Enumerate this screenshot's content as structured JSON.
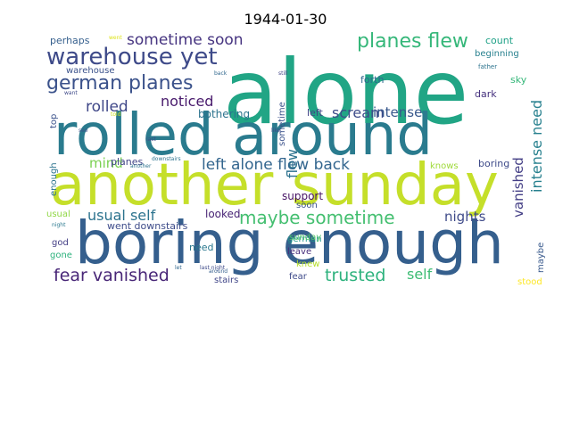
{
  "chart_data": {
    "type": "wordcloud",
    "title": "1944-01-30",
    "words": [
      {
        "text": "alone",
        "color": "#21a585"
      },
      {
        "text": "rolled around",
        "color": "#2a7b8e"
      },
      {
        "text": "another sunday",
        "color": "#c5df2a"
      },
      {
        "text": "boring enough",
        "color": "#355f8d"
      },
      {
        "text": "warehouse yet",
        "color": "#3e4a89"
      },
      {
        "text": "german planes",
        "color": "#3b528b"
      },
      {
        "text": "planes flew",
        "color": "#35b779"
      },
      {
        "text": "sometime soon",
        "color": "#463480"
      },
      {
        "text": "left alone flew back",
        "color": "#32658e"
      },
      {
        "text": "maybe sometime",
        "color": "#44bf70"
      },
      {
        "text": "fear vanished",
        "color": "#482677"
      },
      {
        "text": "trusted",
        "color": "#2db27d"
      },
      {
        "text": "usual self",
        "color": "#2c738e"
      },
      {
        "text": "scream",
        "color": "#3e4c8a"
      },
      {
        "text": "intense",
        "color": "#38588c"
      },
      {
        "text": "intense need",
        "color": "#27808e"
      },
      {
        "text": "vanished",
        "color": "#433e85"
      },
      {
        "text": "rolled",
        "color": "#3f4788"
      },
      {
        "text": "noticed",
        "color": "#481a6c"
      },
      {
        "text": "flew",
        "color": "#2c728e"
      },
      {
        "text": "mind",
        "color": "#7ad151"
      },
      {
        "text": "nights",
        "color": "#3e4a89"
      },
      {
        "text": "self",
        "color": "#3dbc74"
      },
      {
        "text": "bothering",
        "color": "#2c738e"
      },
      {
        "text": "looked",
        "color": "#482475"
      },
      {
        "text": "went downstairs",
        "color": "#3e4c8a"
      },
      {
        "text": "planes",
        "color": "#414487"
      },
      {
        "text": "support",
        "color": "#471365"
      },
      {
        "text": "need",
        "color": "#2a788e"
      },
      {
        "text": "german",
        "color": "#1f968b"
      },
      {
        "text": "sunday",
        "color": "#52c569"
      },
      {
        "text": "leave",
        "color": "#472d7b"
      },
      {
        "text": "knew",
        "color": "#b5de2b"
      },
      {
        "text": "fear",
        "color": "#3e4a89"
      },
      {
        "text": "stairs",
        "color": "#404688"
      },
      {
        "text": "stood",
        "color": "#fde725"
      },
      {
        "text": "boring",
        "color": "#3e4a89"
      },
      {
        "text": "knows",
        "color": "#9fda3a"
      },
      {
        "text": "dark",
        "color": "#46327e"
      },
      {
        "text": "sky",
        "color": "#35b779"
      },
      {
        "text": "beginning",
        "color": "#27808e"
      },
      {
        "text": "count",
        "color": "#1fa187"
      },
      {
        "text": "forth",
        "color": "#31688e"
      },
      {
        "text": "left",
        "color": "#414487"
      },
      {
        "text": "soon",
        "color": "#3b528b"
      },
      {
        "text": "perhaps",
        "color": "#355f8d"
      },
      {
        "text": "warehouse",
        "color": "#3b528b"
      },
      {
        "text": "top",
        "color": "#3b528b"
      },
      {
        "text": "enough",
        "color": "#2c738e"
      },
      {
        "text": "usual",
        "color": "#8fd744"
      },
      {
        "text": "god",
        "color": "#433e85"
      },
      {
        "text": "gone",
        "color": "#2db27d"
      },
      {
        "text": "maybe",
        "color": "#38598c"
      },
      {
        "text": "sometime",
        "color": "#3b528b"
      },
      {
        "text": "father",
        "color": "#2c738e"
      },
      {
        "text": "want",
        "color": "#3e4a89"
      },
      {
        "text": "back",
        "color": "#31688e"
      },
      {
        "text": "still",
        "color": "#414487"
      },
      {
        "text": "night",
        "color": "#2a788e"
      },
      {
        "text": "last night",
        "color": "#3e4a89"
      },
      {
        "text": "last",
        "color": "#3e4a89"
      },
      {
        "text": "let",
        "color": "#31688e"
      },
      {
        "text": "downstairs",
        "color": "#2c738e"
      },
      {
        "text": "another",
        "color": "#2c728e"
      },
      {
        "text": "around",
        "color": "#355f8d"
      },
      {
        "text": "told",
        "color": "#c8e020"
      },
      {
        "text": "see",
        "color": "#3b528b"
      },
      {
        "text": "like",
        "color": "#3e4a89"
      },
      {
        "text": "went",
        "color": "#dde318"
      }
    ]
  }
}
